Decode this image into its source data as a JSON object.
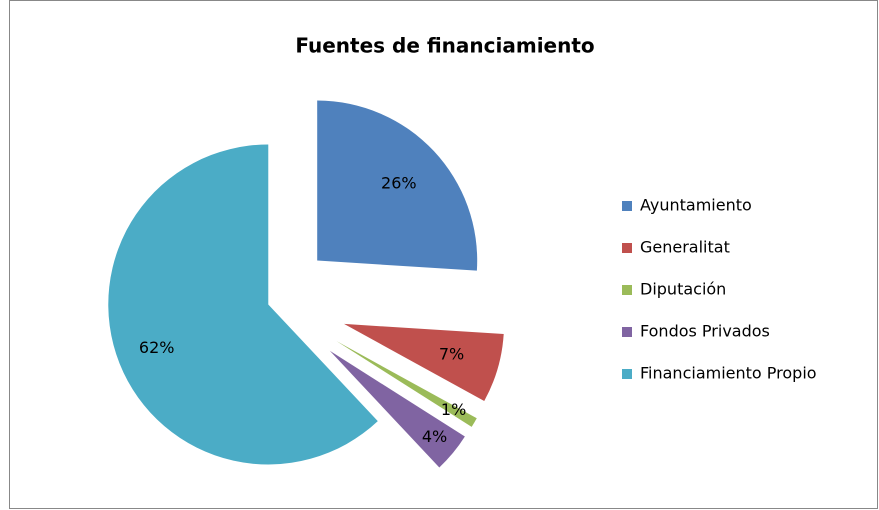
{
  "chart_data": {
    "type": "pie",
    "title": "Fuentes de financiamiento",
    "categories": [
      "Ayuntamiento",
      "Generalitat",
      "Diputación",
      "Fondos Privados",
      "Financiamiento Propio"
    ],
    "values": [
      26,
      7,
      1,
      4,
      62
    ],
    "value_labels": [
      "26%",
      "7%",
      "1%",
      "4%",
      "62%"
    ],
    "colors": [
      "#4f81bd",
      "#c0504d",
      "#9bbb59",
      "#8064a2",
      "#4bacc6"
    ],
    "legend": "right"
  }
}
